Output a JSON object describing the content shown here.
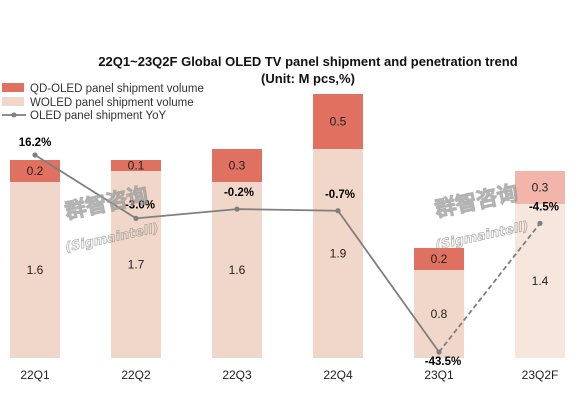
{
  "chart_data": {
    "type": "bar",
    "title": "22Q1~23Q2F Global OLED TV panel shipment and penetration trend",
    "subtitle": "(Unit: M pcs,%)",
    "categories": [
      "22Q1",
      "22Q2",
      "22Q3",
      "22Q4",
      "23Q1",
      "23Q2F"
    ],
    "series": [
      {
        "name": "QD-OLED panel shipment volume",
        "type": "bar",
        "stacked": true,
        "values": [
          0.2,
          0.1,
          0.3,
          0.5,
          0.2,
          0.3
        ],
        "labels": [
          "0.2",
          "0.1",
          "0.3",
          "0.5",
          "0.2",
          "0.3"
        ]
      },
      {
        "name": "WOLED panel shipment volume",
        "type": "bar",
        "stacked": true,
        "values": [
          1.6,
          1.7,
          1.6,
          1.9,
          0.8,
          1.4
        ],
        "labels": [
          "1.6",
          "1.7",
          "1.6",
          "1.9",
          "0.8",
          "1.4"
        ]
      },
      {
        "name": "OLED panel shipment YoY",
        "type": "line",
        "values": [
          16.2,
          -3.0,
          -0.2,
          -0.7,
          -43.5,
          -4.5
        ],
        "labels": [
          "16.2%",
          "-3.0%",
          "-0.2%",
          "-0.7%",
          "-43.5%",
          "-4.5%"
        ],
        "forecast_last": true
      }
    ],
    "forecast_category": "23Q2F",
    "ylim_bars": [
      0,
      2.6
    ],
    "ylim_line": [
      -50,
      40
    ],
    "grid": false,
    "legend_position": "top-left",
    "colors": {
      "qd": "#e07060",
      "wo": "#f1d7c9",
      "qd_forecast": "#f2b5aa",
      "wo_forecast": "#f7e6dd",
      "line": "#7f7f7f"
    },
    "watermark": {
      "cn": "群智咨询",
      "en": "(Sigmaintell)"
    }
  }
}
